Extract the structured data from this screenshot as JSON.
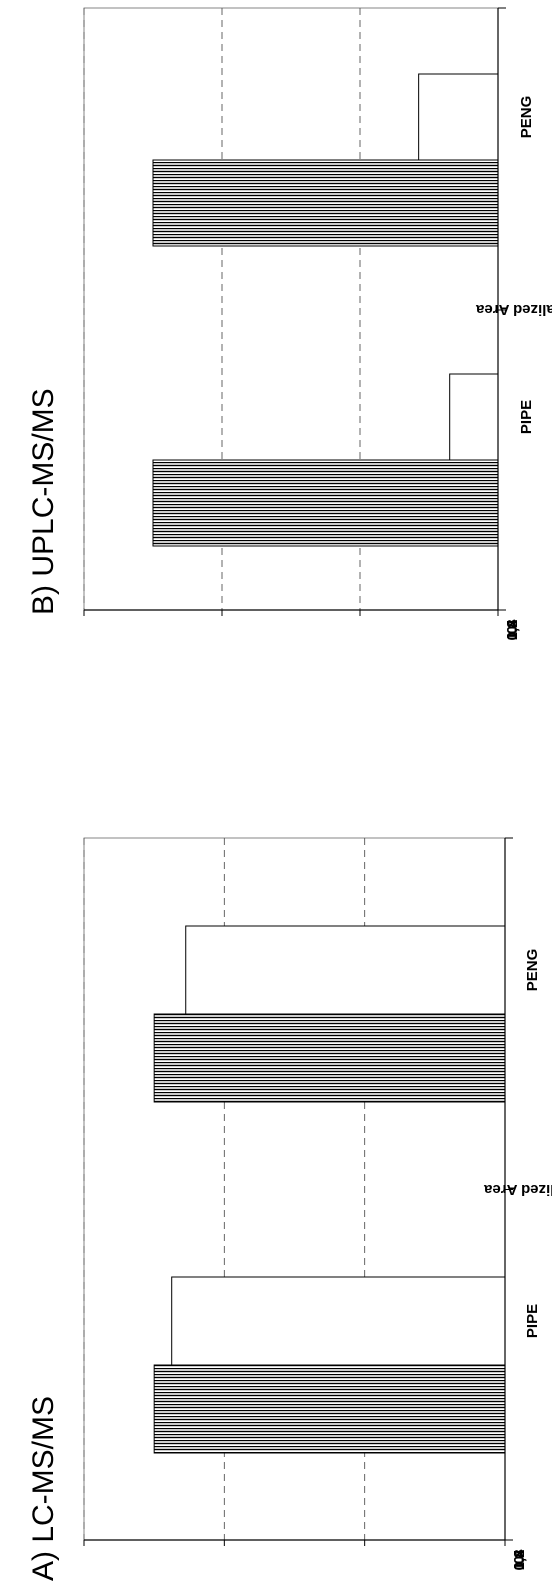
{
  "chart_data": [
    {
      "type": "bar",
      "title": "A) LC-MS/MS",
      "ylabel": "Normalized Area",
      "xlabel": "",
      "categories": [
        "PIPE",
        "PENG"
      ],
      "series": [
        {
          "values": [
            1.0,
            1.0
          ],
          "pattern": "hatched"
        },
        {
          "values": [
            0.95,
            0.91
          ],
          "pattern": "blank"
        }
      ],
      "ylim": [
        0,
        1.2
      ],
      "yticks": [
        "0",
        "0,4",
        "0,8",
        "1,2"
      ],
      "grid": true,
      "orientation": "rotated-90"
    },
    {
      "type": "bar",
      "title": "B) UPLC-MS/MS",
      "ylabel": "Normalized Area",
      "xlabel": "",
      "categories": [
        "PIPE",
        "PENG"
      ],
      "series": [
        {
          "values": [
            1.0,
            1.0
          ],
          "pattern": "hatched"
        },
        {
          "values": [
            0.14,
            0.23
          ],
          "pattern": "blank"
        }
      ],
      "ylim": [
        0,
        1.2
      ],
      "yticks": [
        "0",
        "0,4",
        "0,8",
        "1,2"
      ],
      "grid": true,
      "orientation": "rotated-90"
    }
  ]
}
